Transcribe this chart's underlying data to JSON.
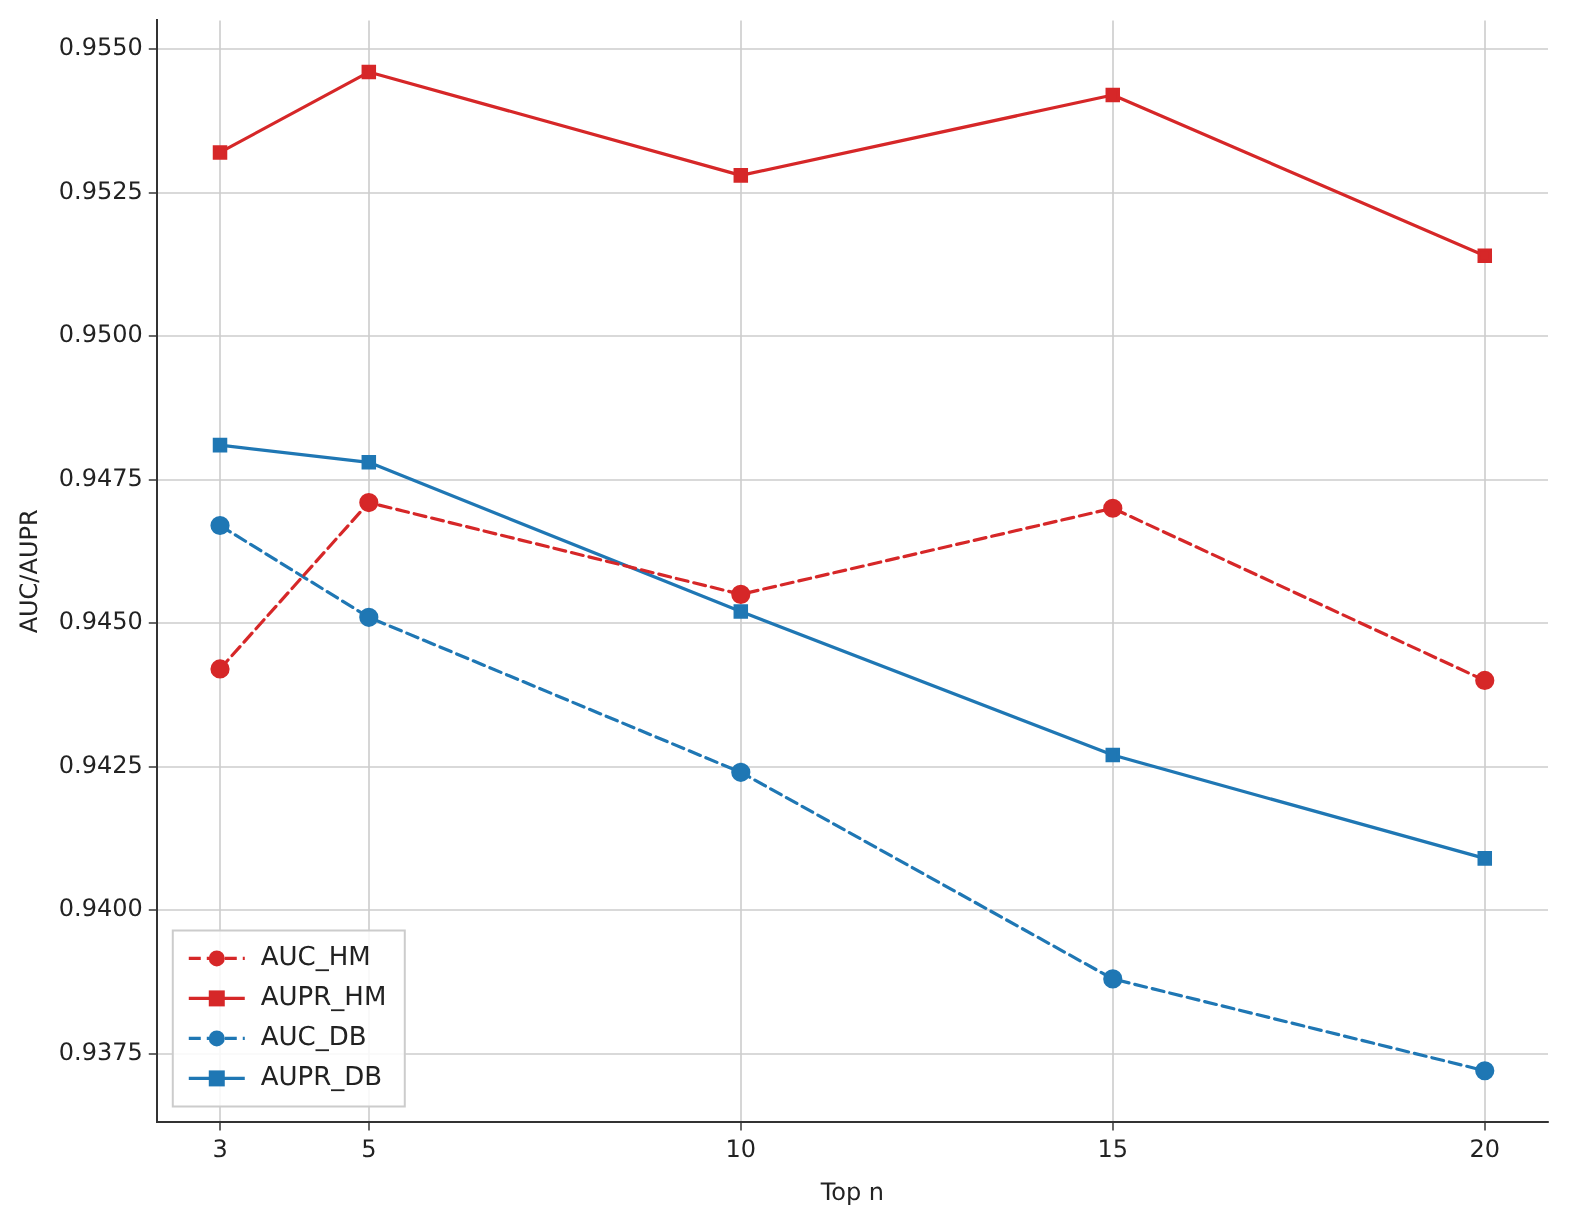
{
  "chart_data": {
    "type": "line",
    "xlabel": "Top n",
    "ylabel": "AUC/AUPR",
    "x": [
      3,
      5,
      10,
      15,
      20
    ],
    "series": [
      {
        "name": "AUC_HM",
        "color": "#d62728",
        "line_style": "dashed",
        "marker": "circle",
        "values": [
          0.9442,
          0.9471,
          0.9455,
          0.947,
          0.944
        ]
      },
      {
        "name": "AUPR_HM",
        "color": "#d62728",
        "line_style": "solid",
        "marker": "square",
        "values": [
          0.9532,
          0.9546,
          0.9528,
          0.9542,
          0.9514
        ]
      },
      {
        "name": "AUC_DB",
        "color": "#1f77b4",
        "line_style": "dashed",
        "marker": "circle",
        "values": [
          0.9467,
          0.9451,
          0.9424,
          0.9388,
          0.9372
        ]
      },
      {
        "name": "AUPR_DB",
        "color": "#1f77b4",
        "line_style": "solid",
        "marker": "square",
        "values": [
          0.9481,
          0.9478,
          0.9452,
          0.9427,
          0.9409
        ]
      }
    ],
    "xlim": [
      2.15,
      20.85
    ],
    "xticks": [
      3,
      5,
      10,
      15,
      20
    ],
    "ylim": [
      0.9363,
      0.9555
    ],
    "yticks": [
      {
        "value": 0.9375,
        "label": "0.9375"
      },
      {
        "value": 0.94,
        "label": "0.9400"
      },
      {
        "value": 0.9425,
        "label": "0.9425"
      },
      {
        "value": 0.945,
        "label": "0.9450"
      },
      {
        "value": 0.9475,
        "label": "0.9475"
      },
      {
        "value": 0.95,
        "label": "0.9500"
      },
      {
        "value": 0.9525,
        "label": "0.9525"
      },
      {
        "value": 0.955,
        "label": "0.9550"
      }
    ],
    "grid": true,
    "legend": "bottom left"
  }
}
